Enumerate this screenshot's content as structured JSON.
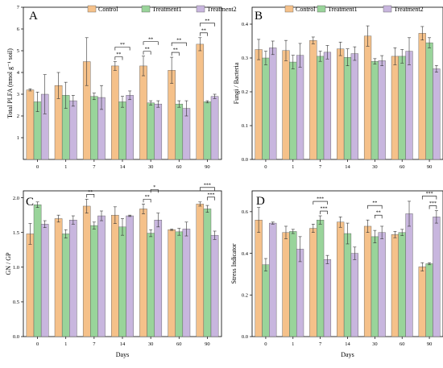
{
  "colors": {
    "Control": "#f5c18a",
    "Treatment1": "#99d49a",
    "Treatment2": "#c8b6de"
  },
  "legend": {
    "entries": [
      "Control",
      "Treatment1",
      "Treatment2"
    ]
  },
  "chart_data": [
    {
      "panel": "A",
      "type": "bar",
      "categories": [
        "0",
        "1",
        "7",
        "14",
        "30",
        "60",
        "90"
      ],
      "xlabel": "",
      "ylabel": "Total PLFA (nmol g⁻¹ soil)",
      "ylim": [
        0,
        7
      ],
      "yticks": [
        1,
        2,
        3,
        4,
        5,
        6,
        7
      ],
      "legend_placement": "top",
      "series": [
        {
          "name": "Control",
          "values": [
            3.2,
            3.4,
            4.5,
            4.3,
            4.3,
            4.1,
            5.3
          ],
          "errors": [
            0.05,
            0.6,
            1.1,
            0.2,
            0.45,
            0.6,
            0.3
          ]
        },
        {
          "name": "Treatment1",
          "values": [
            2.65,
            2.95,
            2.9,
            2.65,
            2.6,
            2.55,
            2.65
          ],
          "errors": [
            0.45,
            0.6,
            0.15,
            0.25,
            0.1,
            0.15,
            0.05
          ]
        },
        {
          "name": "Treatment2",
          "values": [
            3.0,
            2.7,
            2.85,
            2.95,
            2.55,
            2.35,
            2.9
          ],
          "errors": [
            0.9,
            0.25,
            0.55,
            0.2,
            0.15,
            0.35,
            0.1
          ]
        }
      ],
      "annotations": [
        {
          "category": 3,
          "pair": [
            0,
            1
          ],
          "label": "**",
          "level": 0
        },
        {
          "category": 3,
          "pair": [
            0,
            2
          ],
          "label": "**",
          "level": 1
        },
        {
          "category": 4,
          "pair": [
            0,
            1
          ],
          "label": "**",
          "level": 0
        },
        {
          "category": 4,
          "pair": [
            0,
            2
          ],
          "label": "**",
          "level": 1
        },
        {
          "category": 5,
          "pair": [
            0,
            1
          ],
          "label": "**",
          "level": 0
        },
        {
          "category": 5,
          "pair": [
            0,
            2
          ],
          "label": "**",
          "level": 1
        },
        {
          "category": 6,
          "pair": [
            0,
            1
          ],
          "label": "**",
          "level": 0
        },
        {
          "category": 6,
          "pair": [
            0,
            2
          ],
          "label": "**",
          "level": 1
        }
      ]
    },
    {
      "panel": "B",
      "type": "bar",
      "categories": [
        "0",
        "1",
        "7",
        "14",
        "30",
        "60",
        "90"
      ],
      "xlabel": "",
      "ylabel": "Fungi / Bacteria",
      "ylim": [
        0,
        0.45
      ],
      "yticks": [
        0.0,
        0.1,
        0.2,
        0.3,
        0.4
      ],
      "legend_placement": "top",
      "series": [
        {
          "name": "Control",
          "values": [
            0.325,
            0.322,
            0.352,
            0.327,
            0.365,
            0.305,
            0.373
          ],
          "errors": [
            0.03,
            0.03,
            0.01,
            0.02,
            0.03,
            0.025,
            0.02
          ]
        },
        {
          "name": "Treatment1",
          "values": [
            0.3,
            0.288,
            0.305,
            0.302,
            0.29,
            0.305,
            0.345
          ],
          "errors": [
            0.02,
            0.02,
            0.015,
            0.025,
            0.008,
            0.02,
            0.015
          ]
        },
        {
          "name": "Treatment2",
          "values": [
            0.33,
            0.308,
            0.317,
            0.313,
            0.292,
            0.32,
            0.268
          ],
          "errors": [
            0.02,
            0.035,
            0.02,
            0.02,
            0.015,
            0.04,
            0.01
          ]
        }
      ],
      "annotations": []
    },
    {
      "panel": "C",
      "type": "bar",
      "categories": [
        "0",
        "1",
        "7",
        "14",
        "30",
        "60",
        "90"
      ],
      "xlabel": "Days",
      "ylabel": "GN / GP",
      "ylim": [
        0,
        2.1
      ],
      "yticks": [
        0.0,
        0.5,
        1.0,
        1.5,
        2.0
      ],
      "legend_placement": "none",
      "series": [
        {
          "name": "Control",
          "values": [
            1.48,
            1.7,
            1.88,
            1.75,
            1.84,
            1.54,
            1.91
          ],
          "errors": [
            0.15,
            0.05,
            0.1,
            0.12,
            0.07,
            0.01,
            0.03
          ]
        },
        {
          "name": "Treatment1",
          "values": [
            1.9,
            1.48,
            1.6,
            1.58,
            1.49,
            1.51,
            1.84
          ],
          "errors": [
            0.04,
            0.06,
            0.05,
            0.12,
            0.05,
            0.05,
            0.05
          ]
        },
        {
          "name": "Treatment2",
          "values": [
            1.62,
            1.68,
            1.74,
            1.74,
            1.68,
            1.55,
            1.46
          ],
          "errors": [
            0.05,
            0.06,
            0.07,
            0.01,
            0.1,
            0.1,
            0.06
          ]
        }
      ],
      "annotations": [
        {
          "category": 2,
          "pair": [
            0,
            1
          ],
          "label": "**",
          "level": 0
        },
        {
          "category": 4,
          "pair": [
            0,
            1
          ],
          "label": "**",
          "level": 0
        },
        {
          "category": 4,
          "pair": [
            1,
            2
          ],
          "label": "*",
          "level": 1
        },
        {
          "category": 6,
          "pair": [
            1,
            2
          ],
          "label": "***",
          "level": 0
        },
        {
          "category": 6,
          "pair": [
            0,
            2
          ],
          "label": "***",
          "level": 1
        }
      ]
    },
    {
      "panel": "D",
      "type": "bar",
      "categories": [
        "0",
        "1",
        "7",
        "14",
        "30",
        "60",
        "90"
      ],
      "xlabel": "Days",
      "ylabel": "Stress Indicator",
      "ylim": [
        0,
        0.7
      ],
      "yticks": [
        0.0,
        0.2,
        0.4,
        0.6
      ],
      "legend_placement": "none",
      "series": [
        {
          "name": "Control",
          "values": [
            0.56,
            0.5,
            0.52,
            0.55,
            0.53,
            0.49,
            0.335
          ],
          "errors": [
            0.06,
            0.03,
            0.02,
            0.025,
            0.03,
            0.015,
            0.02
          ]
        },
        {
          "name": "Treatment1",
          "values": [
            0.345,
            0.505,
            0.56,
            0.495,
            0.48,
            0.5,
            0.35
          ],
          "errors": [
            0.03,
            0.01,
            0.02,
            0.05,
            0.03,
            0.015,
            0.005
          ]
        },
        {
          "name": "Treatment2",
          "values": [
            0.545,
            0.42,
            0.37,
            0.4,
            0.5,
            0.59,
            0.575
          ],
          "errors": [
            0.005,
            0.06,
            0.02,
            0.03,
            0.03,
            0.06,
            0.03
          ]
        }
      ],
      "annotations": [
        {
          "category": 2,
          "pair": [
            1,
            2
          ],
          "label": "***",
          "level": 0
        },
        {
          "category": 2,
          "pair": [
            0,
            2
          ],
          "label": "***",
          "level": 1
        },
        {
          "category": 4,
          "pair": [
            1,
            2
          ],
          "label": "**",
          "level": 0
        },
        {
          "category": 4,
          "pair": [
            0,
            2
          ],
          "label": "**",
          "level": 1
        },
        {
          "category": 6,
          "pair": [
            1,
            2
          ],
          "label": "***",
          "level": 0
        },
        {
          "category": 6,
          "pair": [
            0,
            2
          ],
          "label": "***",
          "level": 1
        }
      ]
    }
  ]
}
